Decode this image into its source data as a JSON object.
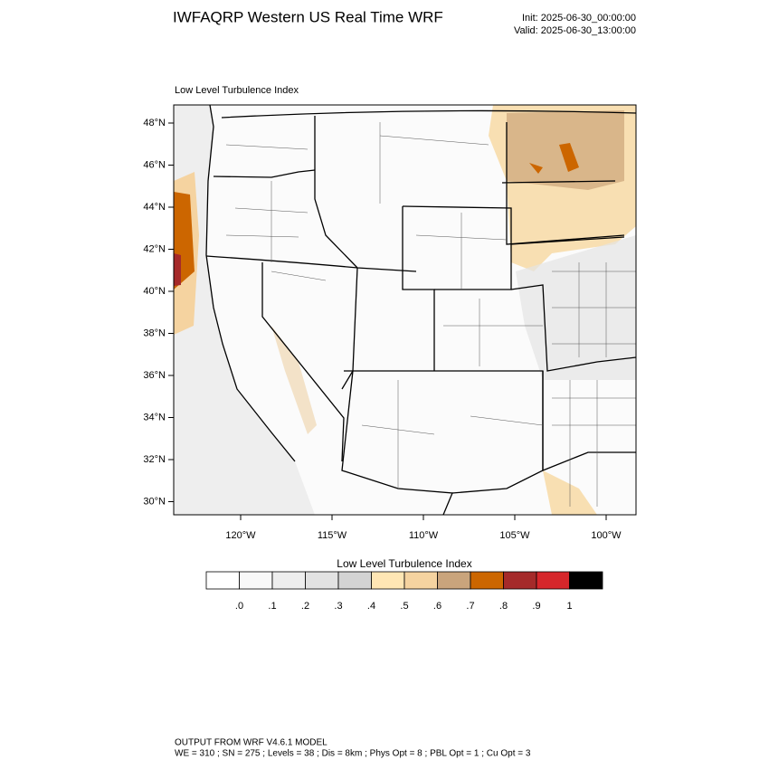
{
  "header": {
    "title": "IWFAQRP Western US Real Time WRF",
    "init": "Init: 2025-06-30_00:00:00",
    "valid": "Valid: 2025-06-30_13:00:00"
  },
  "map": {
    "label": "Low Level Turbulence Index",
    "lat_labels": [
      "48°N",
      "46°N",
      "44°N",
      "42°N",
      "40°N",
      "38°N",
      "36°N",
      "34°N",
      "32°N",
      "30°N"
    ],
    "lon_labels": [
      "120°W",
      "115°W",
      "110°W",
      "105°W",
      "100°W"
    ]
  },
  "colorbar": {
    "title": "Low Level Turbulence Index",
    "colors": [
      "#ffffff",
      "#f8f8f8",
      "#eeeeee",
      "#e2e2e2",
      "#d3d3d3",
      "#ffe6b4",
      "#f5d3a0",
      "#c9a47c",
      "#cc6600",
      "#a52a2a",
      "#d6262b",
      "#000000"
    ],
    "labels": [
      ".0",
      ".1",
      ".2",
      ".3",
      ".4",
      ".5",
      ".6",
      ".7",
      ".8",
      ".9",
      "1"
    ]
  },
  "footer": {
    "line1": "OUTPUT FROM WRF V4.6.1 MODEL",
    "line2": "WE = 310 ; SN = 275 ; Levels = 38 ; Dis = 8km ; Phys Opt = 8 ; PBL Opt = 1 ; Cu Opt = 3"
  }
}
